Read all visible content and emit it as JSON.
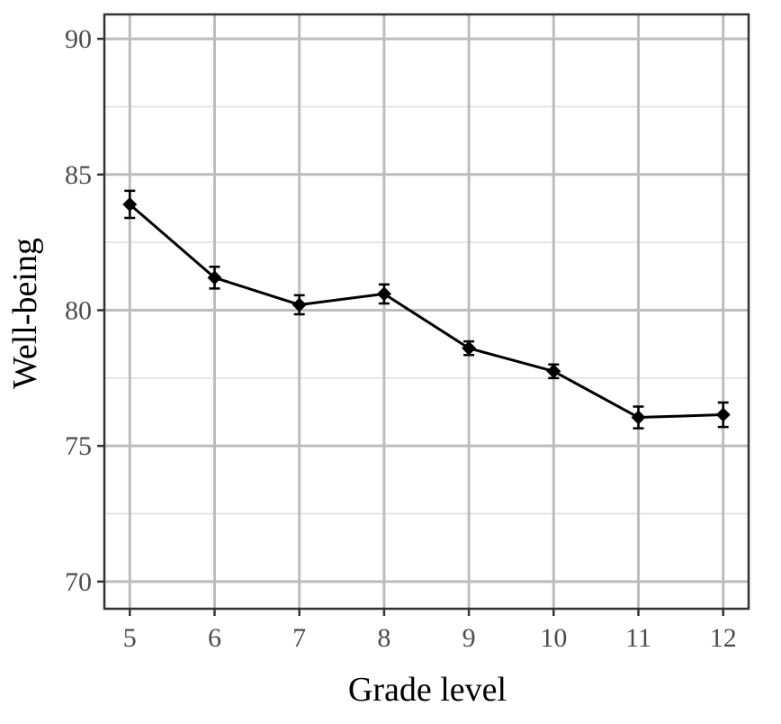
{
  "chart_data": {
    "type": "line",
    "xlabel": "Grade level",
    "ylabel": "Well-being",
    "x": [
      5,
      6,
      7,
      8,
      9,
      10,
      11,
      12
    ],
    "x_ticks": [
      "5",
      "6",
      "7",
      "8",
      "9",
      "10",
      "11",
      "12"
    ],
    "y_ticks": [
      "70",
      "75",
      "80",
      "85",
      "90"
    ],
    "xlim": [
      4.7,
      12.3
    ],
    "ylim": [
      69,
      90.9
    ],
    "series": [
      {
        "values": [
          83.9,
          81.2,
          80.2,
          80.6,
          78.6,
          77.75,
          76.05,
          76.15
        ],
        "error": [
          0.5,
          0.4,
          0.35,
          0.35,
          0.25,
          0.25,
          0.4,
          0.45
        ],
        "color": "#000000",
        "marker": "diamond"
      }
    ],
    "grid": true,
    "colors": {
      "panel_border": "#333333",
      "major_grid": "#bdbdbd",
      "minor_grid": "#dedede",
      "tick_text": "#4d4d4d"
    }
  }
}
